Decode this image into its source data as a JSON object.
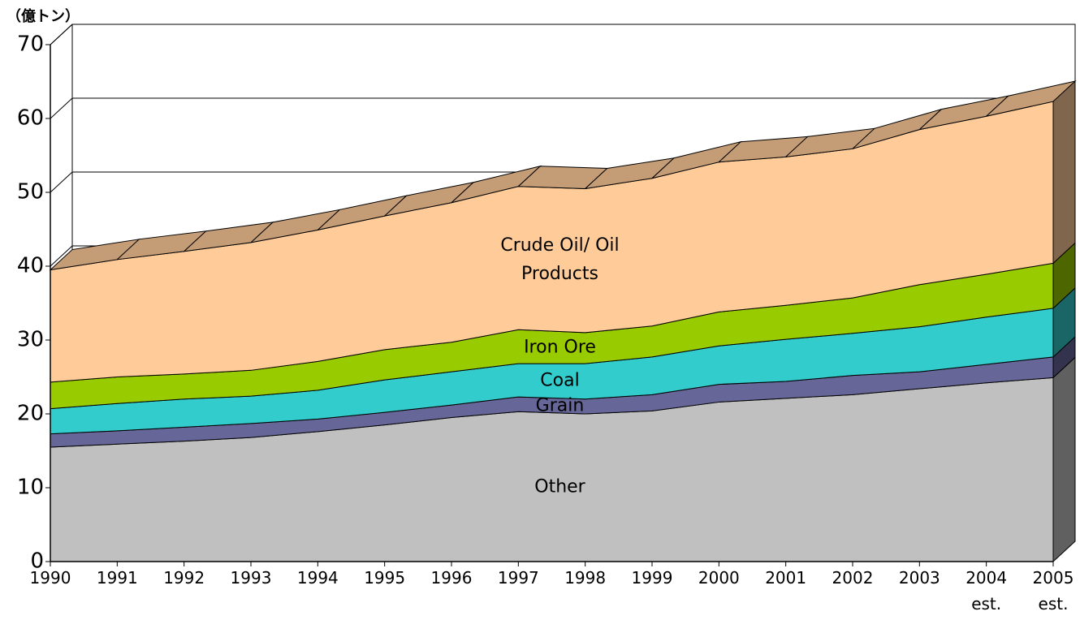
{
  "chart_data": {
    "type": "stacked_area_3d",
    "y_axis_title": "（億トン）",
    "categories": [
      "1990",
      "1991",
      "1992",
      "1993",
      "1994",
      "1995",
      "1996",
      "1997",
      "1998",
      "1999",
      "2000",
      "2001",
      "2002",
      "2003",
      "2004\nest.",
      "2005\nest."
    ],
    "series": [
      {
        "name": "Other",
        "color": "#c0c0c0",
        "values": [
          15.5,
          15.9,
          16.3,
          16.8,
          17.6,
          18.5,
          19.5,
          20.3,
          20.0,
          20.4,
          21.6,
          22.1,
          22.6,
          23.4,
          24.2,
          24.9
        ]
      },
      {
        "name": "Grain",
        "color": "#666699",
        "values": [
          1.8,
          1.8,
          1.9,
          1.9,
          1.7,
          1.7,
          1.7,
          2.0,
          2.0,
          2.2,
          2.4,
          2.3,
          2.6,
          2.3,
          2.5,
          2.8
        ]
      },
      {
        "name": "Coal",
        "color": "#33cccc",
        "values": [
          3.4,
          3.7,
          3.8,
          3.7,
          3.9,
          4.4,
          4.5,
          4.5,
          4.8,
          5.1,
          5.2,
          5.7,
          5.7,
          6.1,
          6.4,
          6.6
        ]
      },
      {
        "name": "Iron Ore",
        "color": "#99cc00",
        "values": [
          3.6,
          3.6,
          3.4,
          3.5,
          3.9,
          4.1,
          4.0,
          4.6,
          4.2,
          4.2,
          4.6,
          4.6,
          4.8,
          5.7,
          5.8,
          6.1
        ]
      },
      {
        "name": "Crude Oil/ Oil\nProducts",
        "color": "#ffcc99",
        "values": [
          15.2,
          15.9,
          16.6,
          17.3,
          17.8,
          18.1,
          18.9,
          19.4,
          19.5,
          20.0,
          20.3,
          20.1,
          20.2,
          21.0,
          21.4,
          21.9
        ]
      }
    ],
    "ylim": [
      0,
      70
    ],
    "yticks": [
      0,
      10,
      20,
      30,
      40,
      50,
      60,
      70
    ],
    "grid": true
  }
}
